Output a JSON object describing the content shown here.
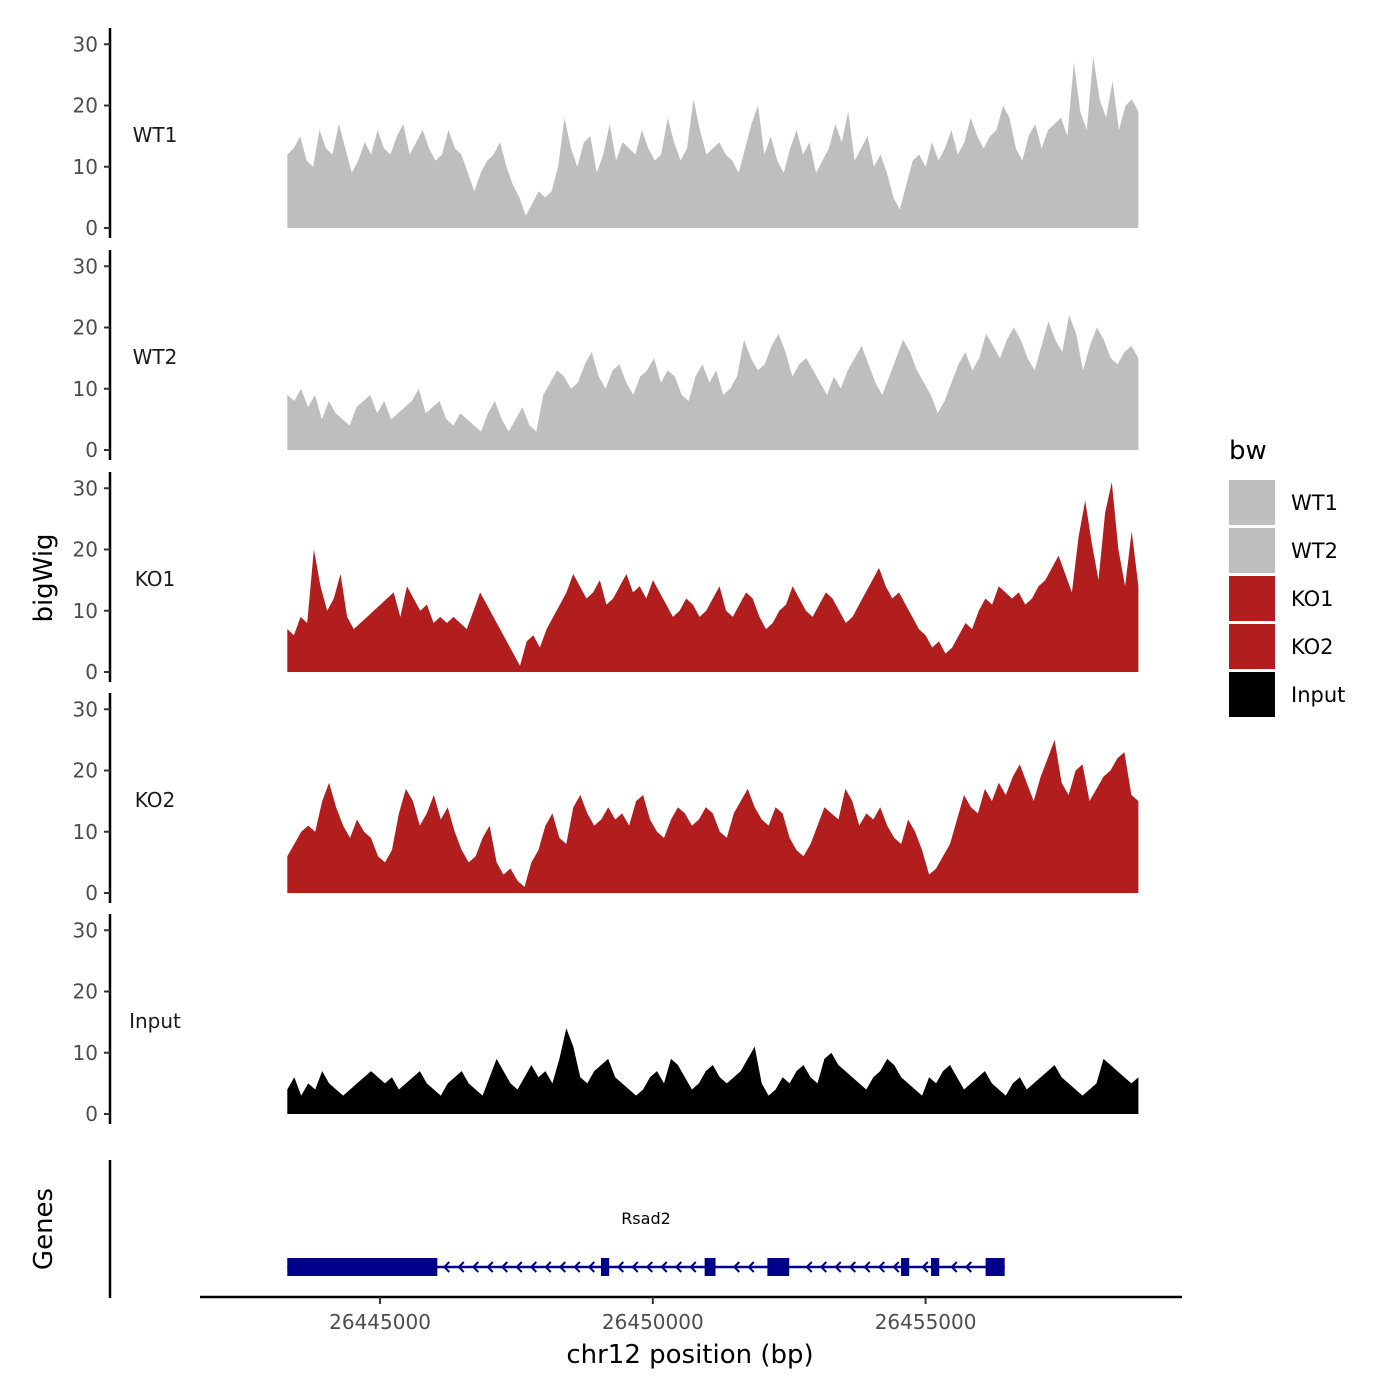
{
  "chart_data": {
    "type": "area",
    "y_axis_title": "bigWig",
    "genes_axis_title": "Genes",
    "x_axis_title": "chr12 position (bp)",
    "x_range": [
      26441700,
      26459700
    ],
    "data_x_range": [
      26443300,
      26458900
    ],
    "x_ticks": [
      {
        "value": 26445000,
        "label": "26445000"
      },
      {
        "value": 26450000,
        "label": "26450000"
      },
      {
        "value": 26455000,
        "label": "26455000"
      }
    ],
    "y_range": [
      0,
      32
    ],
    "y_ticks": [
      {
        "value": 0,
        "label": "0"
      },
      {
        "value": 10,
        "label": "10"
      },
      {
        "value": 20,
        "label": "20"
      },
      {
        "value": 30,
        "label": "30"
      }
    ],
    "legend": {
      "title": "bw",
      "entries": [
        {
          "label": "WT1",
          "color": "#bebebe"
        },
        {
          "label": "WT2",
          "color": "#bebebe"
        },
        {
          "label": "KO1",
          "color": "#b21e1e"
        },
        {
          "label": "KO2",
          "color": "#b21e1e"
        },
        {
          "label": "Input",
          "color": "#000000"
        }
      ]
    },
    "series": [
      {
        "name": "WT1",
        "color": "#bebebe",
        "values": [
          12,
          13,
          15,
          11,
          10,
          16,
          13,
          12,
          17,
          13,
          9,
          11,
          14,
          12,
          16,
          13,
          12,
          15,
          17,
          12,
          14,
          16,
          13,
          11,
          12,
          16,
          13,
          12,
          9,
          6,
          9,
          11,
          12,
          14,
          10,
          7,
          5,
          2,
          4,
          6,
          5,
          6,
          10,
          18,
          13,
          10,
          14,
          15,
          9,
          12,
          17,
          11,
          14,
          13,
          12,
          16,
          13,
          11,
          12,
          18,
          14,
          11,
          13,
          21,
          16,
          12,
          13,
          14,
          12,
          11,
          9,
          13,
          17,
          20,
          12,
          15,
          11,
          9,
          13,
          16,
          12,
          14,
          9,
          11,
          13,
          17,
          14,
          19,
          11,
          13,
          15,
          10,
          12,
          9,
          5,
          3,
          7,
          11,
          12,
          10,
          14,
          11,
          13,
          16,
          12,
          14,
          18,
          15,
          13,
          15,
          16,
          20,
          18,
          13,
          11,
          15,
          17,
          13,
          16,
          17,
          18,
          15,
          27,
          19,
          16,
          28,
          21,
          18,
          24,
          16,
          20,
          21,
          19
        ]
      },
      {
        "name": "WT2",
        "color": "#bebebe",
        "values": [
          9,
          8,
          10,
          7,
          9,
          5,
          8,
          6,
          5,
          4,
          7,
          8,
          9,
          6,
          8,
          5,
          6,
          7,
          8,
          10,
          6,
          7,
          8,
          5,
          4,
          6,
          5,
          4,
          3,
          6,
          8,
          5,
          3,
          5,
          7,
          4,
          3,
          9,
          11,
          13,
          12,
          10,
          11,
          14,
          16,
          12,
          10,
          13,
          14,
          11,
          9,
          12,
          13,
          15,
          11,
          13,
          12,
          9,
          8,
          12,
          14,
          11,
          13,
          9,
          10,
          12,
          18,
          15,
          13,
          14,
          17,
          19,
          16,
          12,
          14,
          15,
          13,
          11,
          9,
          12,
          10,
          13,
          15,
          17,
          14,
          11,
          9,
          12,
          15,
          18,
          16,
          13,
          11,
          9,
          6,
          8,
          11,
          14,
          16,
          13,
          15,
          19,
          17,
          15,
          18,
          20,
          18,
          15,
          13,
          17,
          21,
          18,
          16,
          22,
          19,
          13,
          17,
          20,
          18,
          15,
          14,
          16,
          17,
          15
        ]
      },
      {
        "name": "KO1",
        "color": "#b21e1e",
        "values": [
          7,
          6,
          9,
          8,
          20,
          14,
          10,
          12,
          16,
          9,
          7,
          8,
          9,
          10,
          11,
          12,
          13,
          9,
          14,
          12,
          10,
          11,
          8,
          9,
          8,
          9,
          8,
          7,
          10,
          13,
          11,
          9,
          7,
          5,
          3,
          1,
          5,
          6,
          4,
          7,
          9,
          11,
          13,
          16,
          14,
          12,
          13,
          15,
          11,
          12,
          14,
          16,
          13,
          14,
          12,
          15,
          13,
          11,
          9,
          10,
          12,
          11,
          9,
          10,
          12,
          14,
          10,
          9,
          11,
          13,
          12,
          9,
          7,
          8,
          10,
          11,
          14,
          12,
          10,
          9,
          11,
          13,
          12,
          10,
          8,
          9,
          11,
          13,
          15,
          17,
          14,
          12,
          13,
          11,
          9,
          7,
          6,
          4,
          5,
          3,
          4,
          6,
          8,
          7,
          10,
          12,
          11,
          14,
          13,
          12,
          13,
          11,
          12,
          14,
          15,
          17,
          19,
          16,
          13,
          22,
          28,
          21,
          15,
          26,
          31,
          20,
          14,
          23,
          14
        ]
      },
      {
        "name": "KO2",
        "color": "#b21e1e",
        "values": [
          6,
          8,
          10,
          11,
          10,
          15,
          18,
          14,
          11,
          9,
          12,
          10,
          9,
          6,
          5,
          7,
          13,
          17,
          15,
          11,
          13,
          16,
          12,
          14,
          10,
          7,
          5,
          6,
          9,
          11,
          5,
          3,
          4,
          2,
          1,
          5,
          7,
          11,
          13,
          9,
          8,
          14,
          16,
          13,
          11,
          12,
          14,
          12,
          13,
          11,
          15,
          16,
          12,
          10,
          9,
          12,
          14,
          13,
          11,
          12,
          14,
          13,
          10,
          9,
          13,
          15,
          17,
          14,
          12,
          11,
          14,
          13,
          9,
          7,
          6,
          8,
          11,
          14,
          13,
          12,
          17,
          15,
          11,
          13,
          12,
          14,
          11,
          9,
          8,
          12,
          10,
          7,
          3,
          4,
          6,
          8,
          12,
          16,
          14,
          13,
          17,
          15,
          18,
          16,
          19,
          21,
          18,
          15,
          19,
          22,
          25,
          18,
          16,
          20,
          21,
          15,
          17,
          19,
          20,
          22,
          23,
          16,
          15
        ]
      },
      {
        "name": "Input",
        "color": "#000000",
        "values": [
          4,
          6,
          3,
          5,
          4,
          7,
          5,
          4,
          3,
          4,
          5,
          6,
          7,
          6,
          5,
          6,
          4,
          5,
          6,
          7,
          5,
          4,
          3,
          5,
          6,
          7,
          5,
          4,
          3,
          6,
          9,
          7,
          5,
          4,
          6,
          8,
          6,
          7,
          5,
          9,
          14,
          11,
          6,
          5,
          7,
          8,
          9,
          6,
          5,
          4,
          3,
          4,
          6,
          7,
          5,
          9,
          8,
          6,
          4,
          5,
          7,
          8,
          6,
          5,
          6,
          7,
          9,
          11,
          5,
          3,
          4,
          6,
          5,
          7,
          8,
          6,
          5,
          9,
          10,
          8,
          7,
          6,
          5,
          4,
          6,
          7,
          9,
          8,
          6,
          5,
          4,
          3,
          6,
          5,
          7,
          8,
          6,
          4,
          5,
          6,
          7,
          5,
          4,
          3,
          5,
          6,
          4,
          5,
          6,
          7,
          8,
          6,
          5,
          4,
          3,
          4,
          5,
          9,
          8,
          7,
          6,
          5,
          6
        ]
      }
    ],
    "genes": [
      {
        "name": "Rsad2",
        "strand": "-",
        "color": "#00008b",
        "start": 26443300,
        "end": 26456450,
        "exons": [
          [
            26443300,
            26446050
          ],
          [
            26449050,
            26449200
          ],
          [
            26450950,
            26451150
          ],
          [
            26452100,
            26452500
          ],
          [
            26454550,
            26454700
          ],
          [
            26455100,
            26455250
          ],
          [
            26456100,
            26456450
          ]
        ]
      }
    ]
  }
}
